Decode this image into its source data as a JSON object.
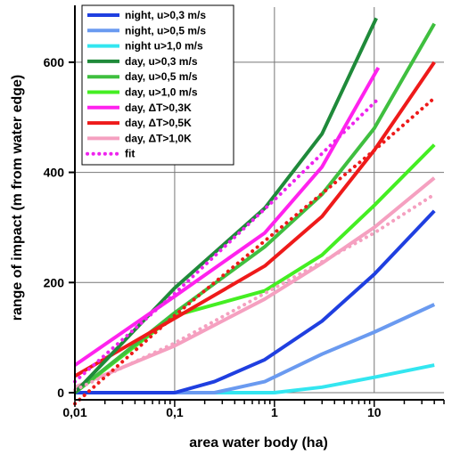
{
  "chart_data": {
    "type": "line",
    "xlabel": "area water body (ha)",
    "ylabel": "range of impact (m from water edge)",
    "x_scale": "log",
    "xlim": [
      0.01,
      50
    ],
    "ylim": [
      0,
      700
    ],
    "x_ticks": [
      {
        "value": 0.01,
        "label": "0,01"
      },
      {
        "value": 0.1,
        "label": "0,1"
      },
      {
        "value": 1,
        "label": "1"
      },
      {
        "value": 10,
        "label": "10"
      }
    ],
    "y_ticks": [
      {
        "value": 0,
        "label": "0"
      },
      {
        "value": 200,
        "label": "200"
      },
      {
        "value": 400,
        "label": "400"
      },
      {
        "value": 600,
        "label": "600"
      }
    ],
    "grid": true,
    "legend_position": "top-left",
    "series": [
      {
        "name": "night, u>0,3 m/s",
        "color": "#1f3fe0",
        "dotted": false,
        "x": [
          0.01,
          0.1,
          0.25,
          0.8,
          3,
          10,
          40
        ],
        "y": [
          0,
          0,
          20,
          60,
          130,
          215,
          330
        ]
      },
      {
        "name": "night, u>0,5 m/s",
        "color": "#6a9af0",
        "dotted": false,
        "x": [
          0.01,
          0.25,
          0.8,
          3,
          10,
          40
        ],
        "y": [
          0,
          0,
          20,
          70,
          110,
          160
        ]
      },
      {
        "name": "night u>1,0 m/s",
        "color": "#33e6f0",
        "dotted": false,
        "x": [
          0.01,
          1,
          3,
          10,
          40
        ],
        "y": [
          0,
          0,
          10,
          28,
          50
        ]
      },
      {
        "name": "day, u>0,3 m/s",
        "color": "#1f8a3a",
        "dotted": false,
        "x": [
          0.01,
          0.1,
          0.8,
          3,
          10.5
        ],
        "y": [
          0,
          190,
          335,
          470,
          680
        ]
      },
      {
        "name": "day, u>0,5 m/s",
        "color": "#3fbf3f",
        "dotted": false,
        "x": [
          0.01,
          0.1,
          0.8,
          3,
          10,
          40
        ],
        "y": [
          0,
          145,
          265,
          360,
          480,
          670
        ]
      },
      {
        "name": "day, u>1,0 m/s",
        "color": "#44ee22",
        "dotted": false,
        "x": [
          0.01,
          0.1,
          0.8,
          3,
          10,
          40
        ],
        "y": [
          0,
          140,
          185,
          250,
          340,
          450
        ]
      },
      {
        "name": "day, ΔT>0,3K",
        "color": "#ff22ee",
        "dotted": false,
        "x": [
          0.01,
          0.1,
          0.8,
          3,
          11
        ],
        "y": [
          50,
          175,
          290,
          410,
          590
        ]
      },
      {
        "name": "day, ΔT>0,5K",
        "color": "#ee1a1a",
        "dotted": false,
        "x": [
          0.01,
          0.1,
          0.8,
          3,
          10,
          40
        ],
        "y": [
          30,
          135,
          230,
          320,
          440,
          600
        ]
      },
      {
        "name": "day, ΔT>1,0K",
        "color": "#f5a0c0",
        "dotted": false,
        "x": [
          0.01,
          0.1,
          0.8,
          3,
          10,
          40
        ],
        "y": [
          10,
          85,
          170,
          235,
          300,
          390
        ]
      },
      {
        "name": "fit",
        "color": "#ee22ee",
        "dotted": true,
        "x": [
          0.01,
          0.1,
          1,
          10.5
        ],
        "y": [
          20,
          180,
          350,
          530
        ]
      },
      {
        "name": "",
        "color": "#ee1a1a",
        "dotted": true,
        "x": [
          0.01,
          0.1,
          1,
          10,
          40
        ],
        "y": [
          -20,
          140,
          290,
          440,
          535
        ]
      },
      {
        "name": "",
        "color": "#f5a0c0",
        "dotted": true,
        "x": [
          0.01,
          0.1,
          1,
          10,
          40
        ],
        "y": [
          5,
          90,
          190,
          290,
          360
        ]
      }
    ]
  }
}
